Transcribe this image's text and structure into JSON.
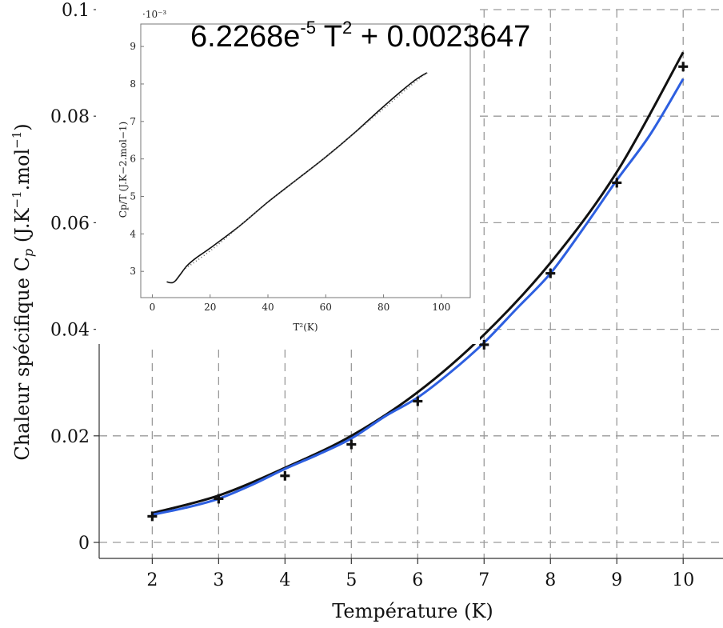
{
  "chart_data": [
    {
      "type": "line",
      "title": "",
      "xlabel": "Température (K)",
      "ylabel_parts": [
        "Chaleur spécifique C",
        "p",
        "  (J.K",
        "−1",
        ".mol",
        "−1",
        ")"
      ],
      "xlim": [
        1.2,
        10.6
      ],
      "ylim": [
        -0.003,
        0.1
      ],
      "x_ticks": [
        2,
        3,
        4,
        5,
        6,
        7,
        8,
        9,
        10
      ],
      "y_ticks": [
        0,
        0.02,
        0.04,
        0.06,
        0.08,
        0.1
      ],
      "y_tick_labels": [
        "0",
        "0.02",
        "0.04",
        "0.06",
        "0.08",
        "0.1"
      ],
      "grid": true,
      "series": [
        {
          "style": "line",
          "color": "#111111",
          "x": [
            2,
            3,
            4,
            5,
            6,
            7,
            8,
            9,
            10
          ],
          "y": [
            0.0055,
            0.0088,
            0.014,
            0.02,
            0.0282,
            0.039,
            0.0525,
            0.0695,
            0.092
          ]
        },
        {
          "style": "line",
          "color": "#2d5fe0",
          "x": [
            2,
            2.5,
            3,
            3.5,
            4,
            4.5,
            5,
            5.5,
            6,
            6.5,
            7,
            7.5,
            8,
            8.5,
            9,
            9.5,
            10
          ],
          "y": [
            0.0052,
            0.0065,
            0.0082,
            0.0108,
            0.0138,
            0.0165,
            0.0195,
            0.0236,
            0.0272,
            0.032,
            0.0375,
            0.044,
            0.0505,
            0.059,
            0.068,
            0.0765,
            0.087
          ]
        },
        {
          "style": "marker",
          "marker": "plus",
          "color": "#111111",
          "x": [
            2,
            3,
            4,
            5,
            6,
            7,
            8,
            9,
            10
          ],
          "y": [
            0.0049,
            0.0082,
            0.0125,
            0.0184,
            0.0265,
            0.0371,
            0.0505,
            0.0675,
            0.0893
          ]
        }
      ]
    },
    {
      "type": "line",
      "title": "6.2268e-5 T² + 0.0023647",
      "title_parts": [
        "6.2268e",
        "-5",
        " T",
        "2",
        " + 0.0023647"
      ],
      "xlabel": "T²(K)",
      "ylabel": "Cp/T (J.K−2.mol−1)",
      "y_multiplier": "·10⁻³",
      "xlim": [
        -4,
        110
      ],
      "ylim": [
        2.3,
        9.6
      ],
      "x_ticks": [
        0,
        20,
        40,
        60,
        80,
        100
      ],
      "y_ticks": [
        3,
        4,
        5,
        6,
        7,
        8,
        9
      ],
      "grid": false,
      "series": [
        {
          "style": "line",
          "color": "#111111",
          "x": [
            5,
            6,
            7,
            8,
            10,
            12,
            15,
            20,
            30,
            40,
            50,
            60,
            70,
            80,
            90,
            95
          ],
          "y": [
            2.72,
            2.7,
            2.7,
            2.75,
            2.95,
            3.15,
            3.35,
            3.62,
            4.2,
            4.85,
            5.45,
            6.05,
            6.7,
            7.4,
            8.05,
            8.3
          ]
        },
        {
          "style": "dotted",
          "color": "#666666",
          "x": [
            10,
            20,
            30,
            40,
            50,
            60,
            70,
            80,
            90,
            95
          ],
          "y": [
            3.05,
            3.6,
            4.25,
            4.9,
            5.5,
            6.1,
            6.75,
            7.4,
            8.05,
            8.35
          ]
        }
      ]
    }
  ]
}
